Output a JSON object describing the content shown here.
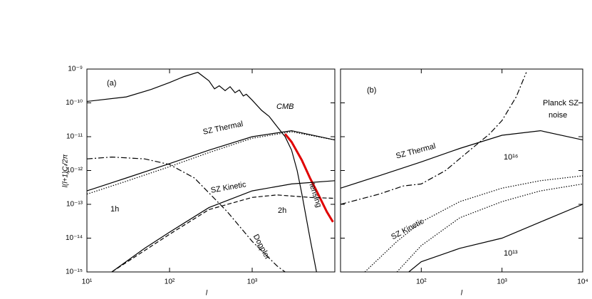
{
  "chart_data": [
    {
      "type": "line",
      "xlabel": "l",
      "ylabel": "l(l+1)Cₗ/2π",
      "xscale": "log",
      "yscale": "log",
      "xlim": [
        10,
        10000
      ],
      "ylim": [
        1e-15,
        1e-09
      ],
      "xticks": [
        {
          "value": 10,
          "label": "10¹"
        },
        {
          "value": 100,
          "label": "10²"
        },
        {
          "value": 1000,
          "label": "10³"
        }
      ],
      "yticks": [
        {
          "value": 1e-15,
          "label": "10⁻¹⁵"
        },
        {
          "value": 1e-14,
          "label": "10⁻¹⁴"
        },
        {
          "value": 1e-13,
          "label": "10⁻¹³"
        },
        {
          "value": 1e-12,
          "label": "10⁻¹²"
        },
        {
          "value": 1e-11,
          "label": "10⁻¹¹"
        },
        {
          "value": 1e-10,
          "label": "10⁻¹⁰"
        },
        {
          "value": 1e-09,
          "label": "10⁻⁹"
        }
      ],
      "ytick_labels": true,
      "annotations": [
        "(a)",
        "CMB",
        "SZ Thermal",
        "lensing",
        "SZ Kinetic",
        "1h",
        "2h",
        "Doppler"
      ],
      "series": [
        {
          "color": "#000000",
          "style": "solid",
          "x": [
            10,
            30,
            60,
            100,
            150,
            220,
            300,
            350,
            400,
            470,
            540,
            620,
            700,
            780,
            850,
            1000,
            1300,
            1600,
            2000,
            2500,
            3000,
            3500,
            4000,
            5000,
            6000
          ],
          "values": [
            1.1e-10,
            1.5e-10,
            2.5e-10,
            4e-10,
            6e-10,
            8e-10,
            4.5e-10,
            2.6e-10,
            3.2e-10,
            2.3e-10,
            3e-10,
            2e-10,
            2.4e-10,
            1.6e-10,
            1.8e-10,
            1.2e-10,
            6e-11,
            4e-11,
            2e-11,
            1e-11,
            4e-12,
            1e-12,
            2e-13,
            1e-14,
            1e-15
          ]
        },
        {
          "color": "#e00000",
          "style": "thick",
          "x": [
            2500,
            3000,
            4000,
            5000,
            6000,
            8000,
            9500
          ],
          "values": [
            1.2e-11,
            7e-12,
            2e-12,
            6e-13,
            2.5e-13,
            6e-14,
            3e-14
          ]
        },
        {
          "color": "#000000",
          "style": "solid",
          "x": [
            10,
            30,
            100,
            300,
            1000,
            3000,
            10000
          ],
          "values": [
            2.5e-13,
            6e-13,
            1.6e-12,
            4e-12,
            1e-11,
            1.5e-11,
            8e-12
          ]
        },
        {
          "color": "#000000",
          "style": "dotted",
          "x": [
            10,
            30,
            100,
            300,
            1000,
            3000,
            10000
          ],
          "values": [
            2e-13,
            4.8e-13,
            1.3e-12,
            3.4e-12,
            9e-12,
            1.4e-11,
            8e-12
          ]
        },
        {
          "color": "#000000",
          "style": "dashdot",
          "x": [
            10,
            20,
            50,
            100,
            200,
            500,
            1000,
            2000,
            2500
          ],
          "values": [
            2.2e-12,
            2.5e-12,
            2.2e-12,
            1.5e-12,
            6e-13,
            6e-14,
            8e-15,
            1.5e-15,
            1e-15
          ]
        },
        {
          "color": "#000000",
          "style": "solid",
          "x": [
            20,
            50,
            100,
            300,
            1000,
            3000,
            10000
          ],
          "values": [
            1e-15,
            5e-15,
            1.5e-14,
            8e-14,
            2.5e-13,
            4e-13,
            5e-13
          ]
        },
        {
          "color": "#000000",
          "style": "dashed",
          "x": [
            20,
            100,
            300,
            1000,
            2000,
            5000,
            10000
          ],
          "values": [
            1e-15,
            1.3e-14,
            7e-14,
            1.6e-13,
            1.9e-13,
            1.6e-13,
            1.5e-13
          ]
        }
      ]
    },
    {
      "type": "line",
      "xlabel": "l",
      "xscale": "log",
      "yscale": "log",
      "xlim": [
        10,
        10000
      ],
      "ylim": [
        1e-15,
        1e-09
      ],
      "xticks": [
        {
          "value": 100,
          "label": "10²"
        },
        {
          "value": 1000,
          "label": "10³"
        },
        {
          "value": 10000,
          "label": "10⁴"
        }
      ],
      "yticks": [
        1e-15,
        1e-14,
        1e-13,
        1e-12,
        1e-11,
        1e-10,
        1e-09
      ],
      "ytick_labels": false,
      "annotations": [
        "(b)",
        "Planck SZ",
        "noise",
        "SZ Thermal",
        "10¹⁶",
        "SZ Kinetic",
        "10¹³"
      ],
      "series": [
        {
          "color": "#000000",
          "style": "dashdot",
          "x": [
            10,
            30,
            60,
            100,
            200,
            400,
            700,
            1000,
            1500,
            2000
          ],
          "values": [
            1e-13,
            2e-13,
            3.5e-13,
            4e-13,
            1e-12,
            4e-12,
            1.2e-11,
            3e-11,
            1.5e-10,
            8e-10
          ]
        },
        {
          "color": "#000000",
          "style": "solid",
          "x": [
            10,
            30,
            100,
            300,
            1000,
            3000,
            10000
          ],
          "values": [
            3e-13,
            7e-13,
            1.8e-12,
            4.5e-12,
            1.1e-11,
            1.5e-11,
            8e-12
          ]
        },
        {
          "color": "#000000",
          "style": "dotted",
          "x": [
            20,
            50,
            100,
            300,
            1000,
            3000,
            10000
          ],
          "values": [
            1e-15,
            8e-15,
            3e-14,
            1.2e-13,
            3e-13,
            5e-13,
            7e-13
          ]
        },
        {
          "color": "#000000",
          "style": "dotted",
          "x": [
            50,
            100,
            300,
            1000,
            3000,
            10000
          ],
          "values": [
            1e-15,
            6e-15,
            4e-14,
            1.2e-13,
            2.5e-13,
            4e-13
          ]
        },
        {
          "color": "#000000",
          "style": "solid",
          "x": [
            70,
            100,
            300,
            1000,
            3000,
            10000
          ],
          "values": [
            1e-15,
            2e-15,
            5e-15,
            1e-14,
            3e-14,
            1e-13
          ]
        }
      ]
    }
  ]
}
